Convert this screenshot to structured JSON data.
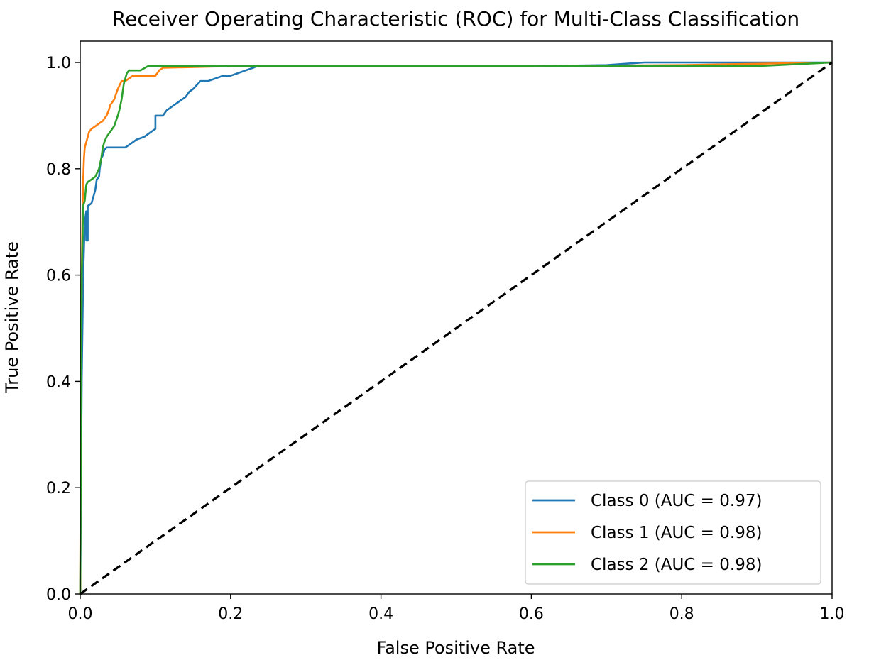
{
  "chart_data": {
    "type": "line",
    "title": "Receiver Operating Characteristic (ROC) for Multi-Class Classification",
    "xlabel": "False Positive Rate",
    "ylabel": "True Positive Rate",
    "xlim": [
      0.0,
      1.0
    ],
    "ylim": [
      0.0,
      1.0
    ],
    "xticks": [
      "0.0",
      "0.2",
      "0.4",
      "0.6",
      "0.8",
      "1.0"
    ],
    "yticks": [
      "0.0",
      "0.2",
      "0.4",
      "0.6",
      "0.8",
      "1.0"
    ],
    "grid": false,
    "legend_position": "lower-right",
    "series": [
      {
        "name": "Class 0 (AUC = 0.97)",
        "color": "#1f77b4",
        "x": [
          0.0,
          0.002,
          0.004,
          0.006,
          0.008,
          0.008,
          0.01,
          0.01,
          0.015,
          0.02,
          0.022,
          0.025,
          0.026,
          0.028,
          0.03,
          0.032,
          0.035,
          0.045,
          0.06,
          0.07,
          0.075,
          0.085,
          0.09,
          0.1,
          0.1,
          0.11,
          0.115,
          0.125,
          0.135,
          0.14,
          0.145,
          0.15,
          0.16,
          0.17,
          0.18,
          0.19,
          0.2,
          0.21,
          0.22,
          0.23,
          0.235,
          0.3,
          0.4,
          0.5,
          0.6,
          0.7,
          0.75,
          0.8,
          0.9,
          1.0
        ],
        "y": [
          0.0,
          0.4,
          0.6,
          0.7,
          0.72,
          0.665,
          0.665,
          0.73,
          0.735,
          0.76,
          0.78,
          0.785,
          0.8,
          0.82,
          0.825,
          0.835,
          0.84,
          0.84,
          0.84,
          0.85,
          0.855,
          0.86,
          0.865,
          0.875,
          0.9,
          0.9,
          0.91,
          0.92,
          0.93,
          0.935,
          0.945,
          0.95,
          0.965,
          0.965,
          0.97,
          0.975,
          0.975,
          0.98,
          0.985,
          0.99,
          0.993,
          0.993,
          0.993,
          0.993,
          0.993,
          0.995,
          1.0,
          1.0,
          1.0,
          1.0
        ]
      },
      {
        "name": "Class 1 (AUC = 0.98)",
        "color": "#ff7f0e",
        "x": [
          0.0,
          0.001,
          0.002,
          0.003,
          0.004,
          0.005,
          0.006,
          0.008,
          0.01,
          0.012,
          0.015,
          0.02,
          0.025,
          0.03,
          0.035,
          0.038,
          0.04,
          0.045,
          0.05,
          0.055,
          0.06,
          0.065,
          0.07,
          0.08,
          0.09,
          0.1,
          0.105,
          0.11,
          0.2,
          0.4,
          0.6,
          0.8,
          1.0
        ],
        "y": [
          0.0,
          0.42,
          0.6,
          0.72,
          0.78,
          0.82,
          0.84,
          0.85,
          0.86,
          0.87,
          0.875,
          0.88,
          0.885,
          0.89,
          0.9,
          0.91,
          0.92,
          0.93,
          0.95,
          0.965,
          0.965,
          0.97,
          0.975,
          0.975,
          0.975,
          0.975,
          0.985,
          0.99,
          0.993,
          0.993,
          0.993,
          0.995,
          1.0
        ]
      },
      {
        "name": "Class 2 (AUC = 0.98)",
        "color": "#2ca02c",
        "x": [
          0.0,
          0.002,
          0.004,
          0.006,
          0.008,
          0.01,
          0.015,
          0.02,
          0.025,
          0.028,
          0.03,
          0.032,
          0.035,
          0.04,
          0.045,
          0.05,
          0.052,
          0.055,
          0.058,
          0.06,
          0.062,
          0.065,
          0.07,
          0.08,
          0.09,
          0.1,
          0.2,
          0.4,
          0.6,
          0.8,
          0.9,
          1.0
        ],
        "y": [
          0.0,
          0.6,
          0.73,
          0.74,
          0.77,
          0.775,
          0.78,
          0.785,
          0.8,
          0.82,
          0.84,
          0.85,
          0.86,
          0.87,
          0.88,
          0.9,
          0.91,
          0.93,
          0.96,
          0.97,
          0.98,
          0.985,
          0.985,
          0.985,
          0.993,
          0.993,
          0.993,
          0.993,
          0.993,
          0.993,
          0.993,
          1.0
        ]
      },
      {
        "name": "",
        "color": "#000000",
        "dashed": true,
        "x": [
          0.0,
          1.0
        ],
        "y": [
          0.0,
          1.0
        ]
      }
    ],
    "legend": [
      "Class 0 (AUC = 0.97)",
      "Class 1 (AUC = 0.98)",
      "Class 2 (AUC = 0.98)"
    ]
  }
}
